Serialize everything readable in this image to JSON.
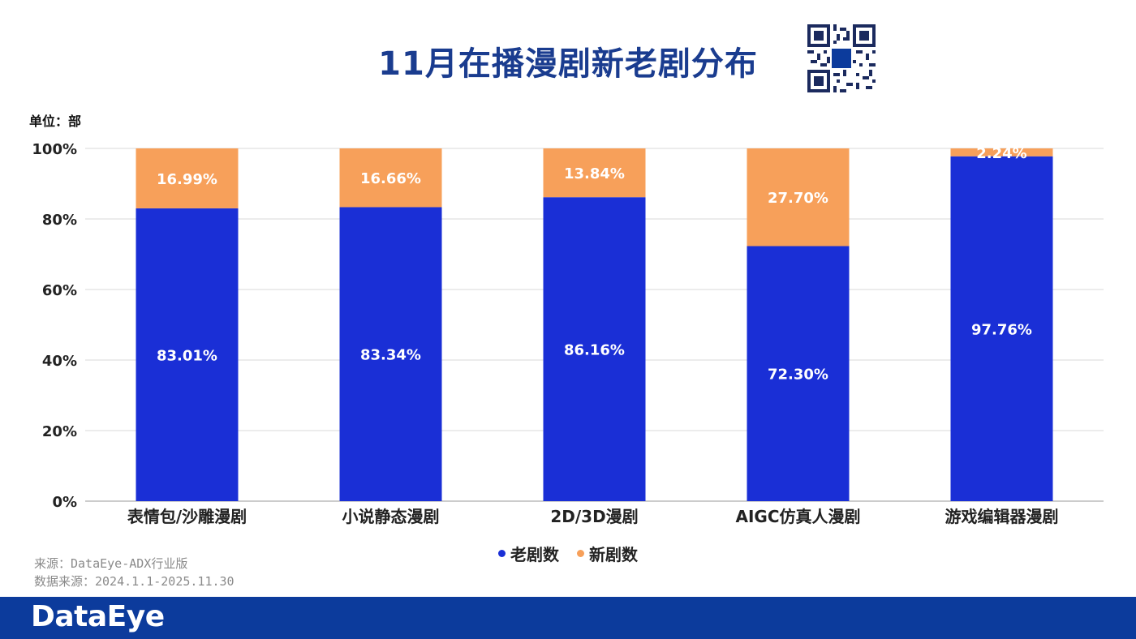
{
  "unit_label": "单位：部",
  "legend": [
    {
      "label": "老剧数",
      "color": "#1a2fd6"
    },
    {
      "label": "新剧数",
      "color": "#f7a05a"
    }
  ],
  "source": {
    "line1": "来源：DataEye-ADX行业版",
    "line2": "数据来源：2024.1.1-2025.11.30"
  },
  "footer": {
    "brand": "DataEye"
  },
  "chart_data": {
    "type": "bar",
    "stacked": true,
    "title": "11月在播漫剧新老剧分布",
    "categories": [
      "表情包/沙雕漫剧",
      "小说静态漫剧",
      "2D/3D漫剧",
      "AIGC仿真人漫剧",
      "游戏编辑器漫剧"
    ],
    "series": [
      {
        "name": "老剧数",
        "color": "#1a2fd6",
        "values": [
          83.01,
          83.34,
          86.16,
          72.3,
          97.76
        ],
        "labels": [
          "83.01%",
          "83.34%",
          "86.16%",
          "72.30%",
          "97.76%"
        ]
      },
      {
        "name": "新剧数",
        "color": "#f7a05a",
        "values": [
          16.99,
          16.66,
          13.84,
          27.7,
          2.24
        ],
        "labels": [
          "16.99%",
          "16.66%",
          "13.84%",
          "27.70%",
          "2.24%"
        ]
      }
    ],
    "ylim": [
      0,
      100
    ],
    "yticks": [
      "0%",
      "20%",
      "40%",
      "60%",
      "80%",
      "100%"
    ],
    "grid": true,
    "legend_position": "bottom"
  }
}
